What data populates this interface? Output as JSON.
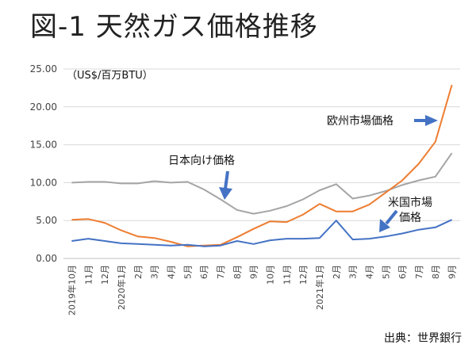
{
  "chart_data": {
    "type": "line",
    "title": "図-1 天然ガス価格推移",
    "ylabel": "（US$/百万BTU）",
    "ylim": [
      0,
      25
    ],
    "y_ticks": [
      "0.00",
      "5.00",
      "10.00",
      "15.00",
      "20.00",
      "25.00"
    ],
    "categories": [
      "2019年10月",
      "11月",
      "12月",
      "2020年1月",
      "2月",
      "3月",
      "4月",
      "5月",
      "6月",
      "7月",
      "8月",
      "9月",
      "10月",
      "11月",
      "12月",
      "2021年1月",
      "2月",
      "3月",
      "4月",
      "5月",
      "6月",
      "7月",
      "8月",
      "9月"
    ],
    "grid": true,
    "legend": "none",
    "series": [
      {
        "name": "日本向け価格",
        "color": "#a5a5a5",
        "values": [
          10.0,
          10.1,
          10.1,
          9.9,
          9.9,
          10.2,
          10.0,
          10.1,
          9.1,
          7.8,
          6.4,
          5.9,
          6.3,
          6.9,
          7.8,
          9.0,
          9.8,
          7.9,
          8.3,
          8.9,
          9.7,
          10.3,
          10.8,
          13.9
        ]
      },
      {
        "name": "欧州市場価格",
        "color": "#ed7d31",
        "values": [
          5.1,
          5.2,
          4.7,
          3.7,
          2.9,
          2.7,
          2.2,
          1.6,
          1.7,
          1.8,
          2.8,
          3.9,
          4.9,
          4.8,
          5.8,
          7.2,
          6.2,
          6.2,
          7.1,
          8.7,
          10.3,
          12.5,
          15.4,
          22.9
        ]
      },
      {
        "name": "米国市場価格",
        "color": "#4472c4",
        "values": [
          2.3,
          2.6,
          2.3,
          2.0,
          1.9,
          1.8,
          1.7,
          1.8,
          1.6,
          1.7,
          2.3,
          1.9,
          2.4,
          2.6,
          2.6,
          2.7,
          5.0,
          2.5,
          2.6,
          2.9,
          3.3,
          3.8,
          4.1,
          5.1
        ]
      }
    ],
    "annotations": {
      "japan": "日本向け価格",
      "europe": "欧州市場価格",
      "us_line1": "米国市場",
      "us_line2": "価格"
    }
  },
  "source": "出典：世界銀行"
}
